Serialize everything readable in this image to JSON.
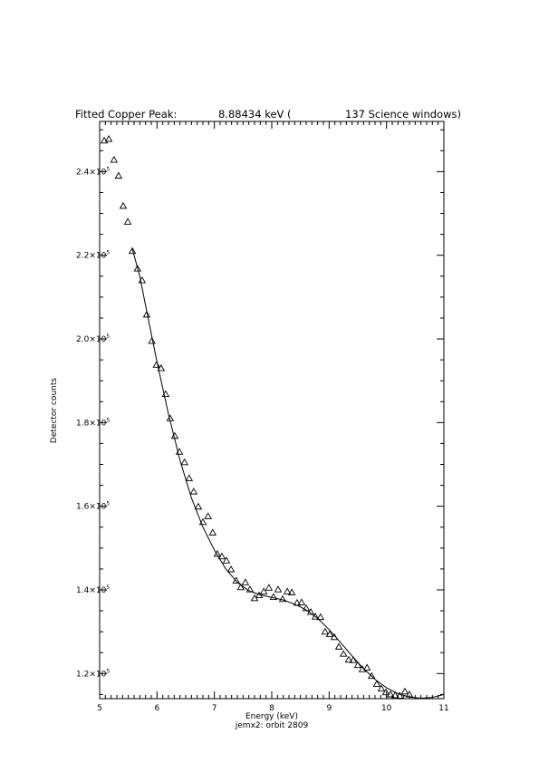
{
  "chart_data": {
    "type": "scatter",
    "title": {
      "prefix": "Fitted Copper Peak:",
      "energy": "8.88434 keV (",
      "windows": "137 Science windows)"
    },
    "xlabel": "Energy (keV)",
    "ylabel": "Detector counts",
    "caption": "jemx2: orbit 2809",
    "xlim": [
      5,
      11
    ],
    "ylim": [
      114000,
      252000
    ],
    "x_ticks": [
      5,
      6,
      7,
      8,
      9,
      10,
      11
    ],
    "x_tick_labels": [
      "5",
      "6",
      "7",
      "8",
      "9",
      "10",
      "11"
    ],
    "y_ticks": [
      120000,
      140000,
      160000,
      180000,
      200000,
      220000,
      240000
    ],
    "y_tick_labels": [
      {
        "mantissa": "1.2×10",
        "exp": "5"
      },
      {
        "mantissa": "1.4×10",
        "exp": "5"
      },
      {
        "mantissa": "1.6×10",
        "exp": "5"
      },
      {
        "mantissa": "1.8×10",
        "exp": "5"
      },
      {
        "mantissa": "2.0×10",
        "exp": "5"
      },
      {
        "mantissa": "2.2×10",
        "exp": "5"
      },
      {
        "mantissa": "2.4×10",
        "exp": "5"
      }
    ],
    "grid": false,
    "series": [
      {
        "kind": "points",
        "marker": "triangle",
        "points": [
          [
            5.08,
            247400
          ],
          [
            5.16,
            247800
          ],
          [
            5.25,
            242800
          ],
          [
            5.33,
            239000
          ],
          [
            5.41,
            231800
          ],
          [
            5.49,
            228000
          ],
          [
            5.57,
            221000
          ],
          [
            5.66,
            216800
          ],
          [
            5.74,
            214000
          ],
          [
            5.82,
            205800
          ],
          [
            5.91,
            199500
          ],
          [
            5.99,
            193800
          ],
          [
            6.07,
            193000
          ],
          [
            6.15,
            186800
          ],
          [
            6.23,
            181000
          ],
          [
            6.31,
            176800
          ],
          [
            6.39,
            173000
          ],
          [
            6.48,
            170500
          ],
          [
            6.56,
            166700
          ],
          [
            6.64,
            163500
          ],
          [
            6.72,
            159900
          ],
          [
            6.8,
            156200
          ],
          [
            6.89,
            157600
          ],
          [
            6.97,
            153700
          ],
          [
            7.05,
            148600
          ],
          [
            7.13,
            148000
          ],
          [
            7.21,
            147000
          ],
          [
            7.29,
            144900
          ],
          [
            7.38,
            142200
          ],
          [
            7.46,
            140600
          ],
          [
            7.54,
            141800
          ],
          [
            7.62,
            140100
          ],
          [
            7.7,
            138000
          ],
          [
            7.78,
            138700
          ],
          [
            7.86,
            139600
          ],
          [
            7.95,
            140500
          ],
          [
            8.03,
            138300
          ],
          [
            8.11,
            140100
          ],
          [
            8.19,
            137800
          ],
          [
            8.27,
            139600
          ],
          [
            8.35,
            139400
          ],
          [
            8.44,
            136900
          ],
          [
            8.52,
            137000
          ],
          [
            8.6,
            135600
          ],
          [
            8.68,
            134700
          ],
          [
            8.76,
            133600
          ],
          [
            8.85,
            133500
          ],
          [
            8.93,
            130000
          ],
          [
            9.01,
            129400
          ],
          [
            9.09,
            128700
          ],
          [
            9.17,
            126400
          ],
          [
            9.25,
            124700
          ],
          [
            9.34,
            123300
          ],
          [
            9.42,
            123200
          ],
          [
            9.5,
            122000
          ],
          [
            9.58,
            121000
          ],
          [
            9.66,
            121400
          ],
          [
            9.74,
            119400
          ],
          [
            9.83,
            117500
          ],
          [
            9.91,
            116400
          ],
          [
            9.99,
            115500
          ],
          [
            10.07,
            115000
          ],
          [
            10.15,
            114800
          ],
          [
            10.23,
            114700
          ],
          [
            10.32,
            115700
          ],
          [
            10.4,
            115000
          ]
        ]
      },
      {
        "kind": "line",
        "points": [
          [
            5.57,
            221500
          ],
          [
            5.7,
            215000
          ],
          [
            5.8,
            208000
          ],
          [
            6.0,
            194500
          ],
          [
            6.2,
            182000
          ],
          [
            6.4,
            171000
          ],
          [
            6.6,
            162000
          ],
          [
            6.8,
            155000
          ],
          [
            7.0,
            149500
          ],
          [
            7.2,
            145000
          ],
          [
            7.4,
            141800
          ],
          [
            7.6,
            139800
          ],
          [
            7.8,
            138800
          ],
          [
            8.0,
            138200
          ],
          [
            8.2,
            137600
          ],
          [
            8.4,
            136600
          ],
          [
            8.6,
            135200
          ],
          [
            8.8,
            133200
          ],
          [
            9.0,
            130500
          ],
          [
            9.2,
            127400
          ],
          [
            9.4,
            124200
          ],
          [
            9.6,
            121200
          ],
          [
            9.8,
            118600
          ],
          [
            10.0,
            116600
          ],
          [
            10.2,
            115200
          ],
          [
            10.4,
            114400
          ],
          [
            10.6,
            114100
          ],
          [
            10.8,
            114300
          ],
          [
            11.0,
            115000
          ]
        ]
      }
    ]
  }
}
